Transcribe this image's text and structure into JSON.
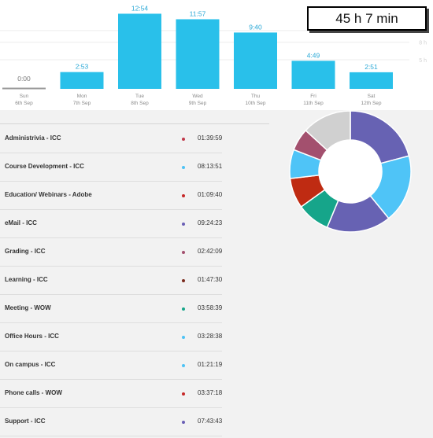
{
  "total_label": "45 h 7 min",
  "colors": {
    "bar": "#29c0ea",
    "bar_zero": "#9a9a9a",
    "value_text": "#29a8d6",
    "day_text": "#8a8a8a",
    "grid": "#eeeeee"
  },
  "chart_data": {
    "type": "bar",
    "categories": [
      "Sun 6th Sep",
      "Mon 7th Sep",
      "Tue 8th Sep",
      "Wed 9th Sep",
      "Thu 10th Sep",
      "Fri 11th Sep",
      "Sat 12th Sep"
    ],
    "days": [
      {
        "day": "Sun",
        "date": "6th Sep",
        "label": "0:00",
        "hours": 0
      },
      {
        "day": "Mon",
        "date": "7th Sep",
        "label": "2:53",
        "hours": 2.883
      },
      {
        "day": "Tue",
        "date": "8th Sep",
        "label": "12:54",
        "hours": 12.9
      },
      {
        "day": "Wed",
        "date": "9th Sep",
        "label": "11:57",
        "hours": 11.95
      },
      {
        "day": "Thu",
        "date": "10th Sep",
        "label": "9:40",
        "hours": 9.667
      },
      {
        "day": "Fri",
        "date": "11th Sep",
        "label": "4:49",
        "hours": 4.817
      },
      {
        "day": "Sat",
        "date": "12th Sep",
        "label": "2:51",
        "hours": 2.85
      }
    ],
    "y_ticks": [
      "10 h",
      "8 h",
      "5 h"
    ],
    "ylim": [
      0,
      13.5
    ]
  },
  "activities": [
    {
      "name": "Administrivia - ICC",
      "time": "01:39:59",
      "color": "#c0394b"
    },
    {
      "name": "Course Development - ICC",
      "time": "08:13:51",
      "color": "#4ec3f5"
    },
    {
      "name": "Education/ Webinars - Adobe",
      "time": "01:09:40",
      "color": "#c62828"
    },
    {
      "name": "eMail - ICC",
      "time": "09:24:23",
      "color": "#6a5fb5"
    },
    {
      "name": "Grading - ICC",
      "time": "02:42:09",
      "color": "#a3506e"
    },
    {
      "name": "Learning - ICC",
      "time": "01:47:30",
      "color": "#7a2b1e"
    },
    {
      "name": "Meeting - WOW",
      "time": "03:58:39",
      "color": "#17a589"
    },
    {
      "name": "Office Hours - ICC",
      "time": "03:28:38",
      "color": "#4ec3f5"
    },
    {
      "name": "On campus - ICC",
      "time": "01:21:19",
      "color": "#4ec3f5"
    },
    {
      "name": "Phone calls - WOW",
      "time": "03:37:18",
      "color": "#c62828"
    },
    {
      "name": "Support - ICC",
      "time": "07:43:43",
      "color": "#6a5fb5"
    }
  ],
  "donut_data": [
    {
      "value": 9.41,
      "color": "#6762b3"
    },
    {
      "value": 8.23,
      "color": "#4fc4f7"
    },
    {
      "value": 7.73,
      "color": "#6762b3"
    },
    {
      "value": 3.98,
      "color": "#16a58a"
    },
    {
      "value": 3.63,
      "color": "#bf2b12"
    },
    {
      "value": 3.48,
      "color": "#4fc4f7"
    },
    {
      "value": 2.7,
      "color": "#a3506e"
    },
    {
      "value": 5.94,
      "color": "#d0d0d0"
    }
  ]
}
